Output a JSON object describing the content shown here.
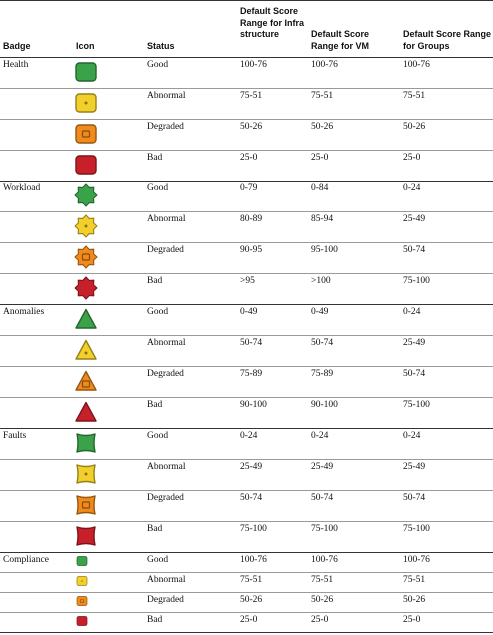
{
  "headers": {
    "badge": "Badge",
    "icon": "Icon",
    "status": "Status",
    "infra": "Default Score Range for Infrastructure",
    "vm": "Default Score Range for VM",
    "groups": "Default Score Range for Groups"
  },
  "colors": {
    "good": "#3aa349",
    "abnormal": "#f2cf2a",
    "degraded": "#f08a1c",
    "bad": "#c8202b"
  },
  "groups": [
    {
      "badge": "Health",
      "icon_shape": "rounded-square",
      "rows": [
        {
          "status": "Good",
          "infra": "100-76",
          "vm": "100-76",
          "groups": "100-76"
        },
        {
          "status": "Abnormal",
          "infra": "75-51",
          "vm": "75-51",
          "groups": "75-51"
        },
        {
          "status": "Degraded",
          "infra": "50-26",
          "vm": "50-26",
          "groups": "50-26"
        },
        {
          "status": "Bad",
          "infra": "25-0",
          "vm": "25-0",
          "groups": "25-0"
        }
      ]
    },
    {
      "badge": "Workload",
      "icon_shape": "gear",
      "rows": [
        {
          "status": "Good",
          "infra": "0-79",
          "vm": "0-84",
          "groups": "0-24"
        },
        {
          "status": "Abnormal",
          "infra": "80-89",
          "vm": "85-94",
          "groups": "25-49"
        },
        {
          "status": "Degraded",
          "infra": "90-95",
          "vm": "95-100",
          "groups": "50-74"
        },
        {
          "status": "Bad",
          "infra": ">95",
          "vm": ">100",
          "groups": "75-100"
        }
      ]
    },
    {
      "badge": "Anomalies",
      "icon_shape": "triangle",
      "rows": [
        {
          "status": "Good",
          "infra": "0-49",
          "vm": "0-49",
          "groups": "0-24"
        },
        {
          "status": "Abnormal",
          "infra": "50-74",
          "vm": "50-74",
          "groups": "25-49"
        },
        {
          "status": "Degraded",
          "infra": "75-89",
          "vm": "75-89",
          "groups": "50-74"
        },
        {
          "status": "Bad",
          "infra": "90-100",
          "vm": "90-100",
          "groups": "75-100"
        }
      ]
    },
    {
      "badge": "Faults",
      "icon_shape": "barrel",
      "rows": [
        {
          "status": "Good",
          "infra": "0-24",
          "vm": "0-24",
          "groups": "0-24"
        },
        {
          "status": "Abnormal",
          "infra": "25-49",
          "vm": "25-49",
          "groups": "25-49"
        },
        {
          "status": "Degraded",
          "infra": "50-74",
          "vm": "50-74",
          "groups": "50-74"
        },
        {
          "status": "Bad",
          "infra": "75-100",
          "vm": "75-100",
          "groups": "75-100"
        }
      ]
    },
    {
      "badge": "Compliance",
      "icon_shape": "small-square",
      "rows": [
        {
          "status": "Good",
          "infra": "100-76",
          "vm": "100-76",
          "groups": "100-76"
        },
        {
          "status": "Abnormal",
          "infra": "75-51",
          "vm": "75-51",
          "groups": "75-51"
        },
        {
          "status": "Degraded",
          "infra": "50-26",
          "vm": "50-26",
          "groups": "50-26"
        },
        {
          "status": "Bad",
          "infra": "25-0",
          "vm": "25-0",
          "groups": "25-0"
        }
      ]
    }
  ]
}
